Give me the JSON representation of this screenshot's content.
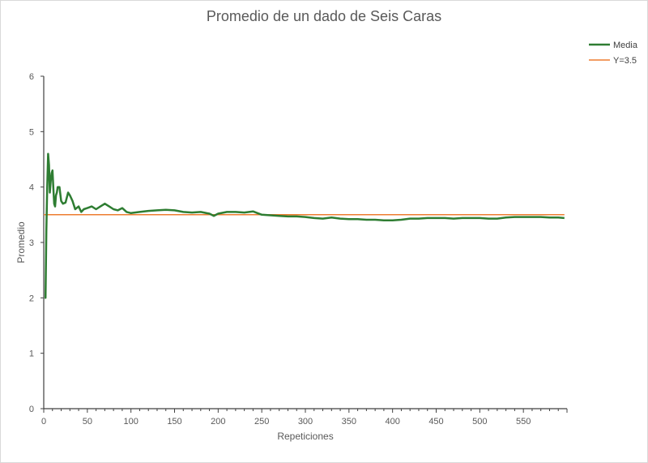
{
  "chart_data": {
    "type": "line",
    "title": "Promedio de un dado de Seis Caras",
    "xlabel": "Repeticiones",
    "ylabel": "Promedio",
    "xlim": [
      0,
      600
    ],
    "ylim": [
      0,
      6
    ],
    "x_ticks": [
      0,
      50,
      100,
      150,
      200,
      250,
      300,
      350,
      400,
      450,
      500,
      550
    ],
    "y_ticks": [
      0,
      1,
      2,
      3,
      4,
      5,
      6
    ],
    "grid": false,
    "legend_position": "top-right",
    "series": [
      {
        "name": "Media",
        "color": "#2e7d32",
        "x": [
          1,
          2,
          3,
          4,
          5,
          6,
          7,
          8,
          9,
          10,
          11,
          12,
          13,
          14,
          15,
          16,
          18,
          20,
          22,
          25,
          28,
          30,
          33,
          36,
          40,
          43,
          46,
          50,
          55,
          60,
          65,
          70,
          75,
          80,
          85,
          90,
          95,
          100,
          110,
          120,
          130,
          140,
          150,
          160,
          170,
          180,
          190,
          195,
          200,
          210,
          220,
          230,
          240,
          245,
          250,
          260,
          270,
          280,
          290,
          300,
          310,
          320,
          330,
          340,
          350,
          360,
          370,
          380,
          390,
          400,
          410,
          420,
          430,
          440,
          450,
          460,
          470,
          480,
          490,
          500,
          510,
          520,
          530,
          540,
          550,
          560,
          570,
          580,
          590,
          597
        ],
        "y": [
          2.0,
          2.0,
          3.2,
          4.0,
          4.6,
          4.4,
          3.9,
          4.1,
          4.25,
          4.3,
          4.0,
          3.7,
          3.65,
          3.85,
          3.9,
          4.0,
          4.0,
          3.75,
          3.7,
          3.72,
          3.9,
          3.85,
          3.75,
          3.6,
          3.65,
          3.55,
          3.6,
          3.62,
          3.65,
          3.6,
          3.65,
          3.7,
          3.65,
          3.6,
          3.58,
          3.62,
          3.55,
          3.53,
          3.55,
          3.57,
          3.58,
          3.59,
          3.58,
          3.55,
          3.54,
          3.55,
          3.52,
          3.48,
          3.52,
          3.55,
          3.55,
          3.54,
          3.56,
          3.53,
          3.5,
          3.49,
          3.48,
          3.47,
          3.47,
          3.46,
          3.44,
          3.43,
          3.45,
          3.43,
          3.42,
          3.42,
          3.41,
          3.41,
          3.4,
          3.4,
          3.41,
          3.43,
          3.43,
          3.44,
          3.44,
          3.44,
          3.43,
          3.44,
          3.44,
          3.44,
          3.43,
          3.43,
          3.45,
          3.46,
          3.46,
          3.46,
          3.46,
          3.45,
          3.45,
          3.44
        ]
      },
      {
        "name": "Y=3.5",
        "color": "#ed7d31",
        "x": [
          0,
          597
        ],
        "y": [
          3.5,
          3.5
        ]
      }
    ]
  }
}
